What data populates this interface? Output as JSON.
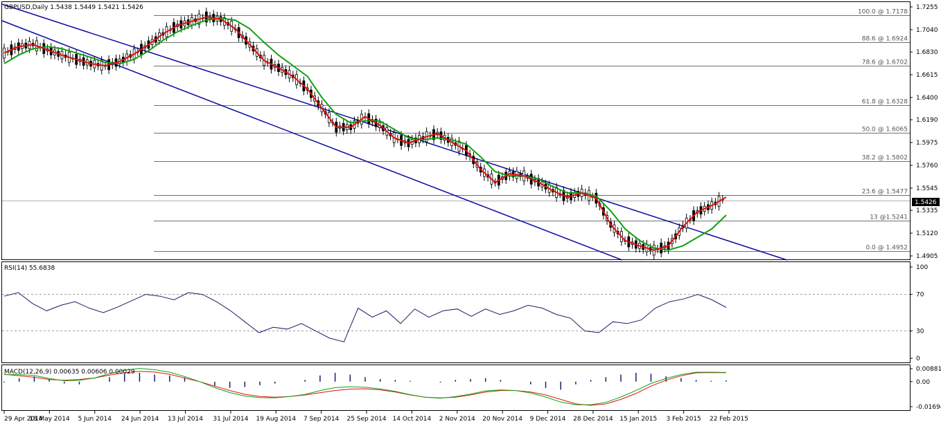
{
  "header": "GBPUSD,Daily  1.5438 1.5449 1.5421 1.5426",
  "colors": {
    "channel": "#0a0aa0",
    "ma_fast": "#e01010",
    "ma_slow": "#10a010",
    "fib": "#707070",
    "rsi": "#1a1a6e",
    "macd_hist": "#1a1a6e",
    "macd_signal": "#e01010",
    "macd_main": "#10a010"
  },
  "chart_data": [
    {
      "type": "line",
      "title": "GBPUSD,Daily",
      "ohlc_last": {
        "open": 1.5438,
        "high": 1.5449,
        "low": 1.5421,
        "close": 1.5426
      },
      "current_price_label": "1.5426",
      "ylim": [
        1.4905,
        1.7255
      ],
      "y_ticks": [
        "1.7255",
        "1.7040",
        "1.6830",
        "1.6615",
        "1.6400",
        "1.6190",
        "1.5975",
        "1.5760",
        "1.5545",
        "1.5335",
        "1.5120",
        "1.4905"
      ],
      "x_ticks": [
        "29 Apr 2014",
        "18 May 2014",
        "5 Jun 2014",
        "24 Jun 2014",
        "13 Jul 2014",
        "31 Jul 2014",
        "19 Aug 2014",
        "7 Sep 2014",
        "25 Sep 2014",
        "14 Oct 2014",
        "2 Nov 2014",
        "20 Nov 2014",
        "9 Dec 2014",
        "28 Dec 2014",
        "15 Jan 2015",
        "3 Feb 2015",
        "22 Feb 2015"
      ],
      "fib_levels": [
        {
          "label": "100.0 @ 1.7178",
          "value": 1.7178
        },
        {
          "label": "88.6 @ 1.6924",
          "value": 1.6924
        },
        {
          "label": "78.6 @ 1.6702",
          "value": 1.6702
        },
        {
          "label": "61.8 @ 1.6328",
          "value": 1.6328
        },
        {
          "label": "50.0 @ 1.6065",
          "value": 1.6065
        },
        {
          "label": "38.2 @ 1.5802",
          "value": 1.5802
        },
        {
          "label": "23.6 @ 1.5477",
          "value": 1.5477
        },
        {
          "label": "13 @1.5241",
          "value": 1.5241
        },
        {
          "label": "0.0 @ 1.4952",
          "value": 1.4952
        }
      ],
      "series": [
        {
          "values": [
            1.682,
            1.688,
            1.69,
            1.685,
            1.68,
            1.676,
            1.672,
            1.67,
            1.674,
            1.681,
            1.69,
            1.7,
            1.708,
            1.712,
            1.716,
            1.714,
            1.705,
            1.69,
            1.675,
            1.668,
            1.66,
            1.648,
            1.63,
            1.612,
            1.612,
            1.622,
            1.614,
            1.602,
            1.597,
            1.602,
            1.606,
            1.598,
            1.59,
            1.572,
            1.56,
            1.568,
            1.566,
            1.56,
            1.552,
            1.546,
            1.55,
            1.545,
            1.52,
            1.505,
            1.5,
            1.496,
            1.5,
            1.518,
            1.532,
            1.538,
            1.546
          ]
        },
        {
          "values": [
            1.672,
            1.68,
            1.686,
            1.688,
            1.686,
            1.682,
            1.678,
            1.673,
            1.672,
            1.676,
            1.684,
            1.694,
            1.702,
            1.708,
            1.713,
            1.715,
            1.713,
            1.705,
            1.692,
            1.68,
            1.67,
            1.66,
            1.64,
            1.624,
            1.616,
            1.618,
            1.618,
            1.61,
            1.602,
            1.6,
            1.602,
            1.6,
            1.596,
            1.584,
            1.57,
            1.566,
            1.566,
            1.563,
            1.556,
            1.55,
            1.55,
            1.547,
            1.533,
            1.516,
            1.505,
            1.498,
            1.496,
            1.5,
            1.508,
            1.516,
            1.529
          ]
        }
      ]
    },
    {
      "type": "line",
      "title": "RSI(14) 55.6838",
      "ylim": [
        0,
        100
      ],
      "y_ticks": [
        "100",
        "70",
        "30",
        "0"
      ],
      "levels": [
        70,
        30
      ],
      "series": [
        {
          "values": [
            68,
            72,
            60,
            52,
            58,
            62,
            55,
            50,
            56,
            63,
            70,
            68,
            64,
            72,
            70,
            62,
            52,
            40,
            28,
            34,
            32,
            38,
            30,
            22,
            18,
            55,
            45,
            52,
            38,
            54,
            45,
            52,
            54,
            46,
            54,
            48,
            52,
            58,
            55,
            48,
            44,
            30,
            28,
            40,
            38,
            42,
            55,
            62,
            65,
            70,
            64,
            55.68
          ]
        }
      ]
    },
    {
      "type": "bar",
      "title": "MACD(12,26,9) 0.00635 0.00606 0.00029",
      "ylim": [
        -0.01694,
        0.00881
      ],
      "y_ticks": [
        "0.00881",
        "0.00",
        "-0.01694"
      ],
      "series": [
        {
          "values": [
            -0.0002,
            0.0008,
            0.0012,
            0.0006,
            -0.0004,
            -0.0006,
            0.0,
            0.001,
            0.0018,
            0.002,
            0.0016,
            0.0014,
            0.001,
            0.0,
            -0.001,
            -0.0014,
            -0.0012,
            -0.0008,
            -0.0004,
            0.0,
            0.0004,
            0.0014,
            0.002,
            0.0016,
            0.001,
            0.0006,
            0.0004,
            0.0002,
            0.0,
            -0.0002,
            0.0004,
            0.0006,
            0.0008,
            0.0004,
            0.0,
            -0.0006,
            -0.0014,
            -0.0018,
            -0.0006,
            0.0004,
            0.001,
            0.0016,
            0.002,
            0.0018,
            0.0012,
            0.0008,
            0.0004,
            0.0002,
            0.0003
          ]
        },
        {
          "values": [
            0.005,
            0.004,
            0.003,
            0.0015,
            0.001,
            0.0015,
            0.0025,
            0.0045,
            0.006,
            0.007,
            0.0065,
            0.005,
            0.0025,
            0.0,
            -0.003,
            -0.006,
            -0.0085,
            -0.01,
            -0.0105,
            -0.01,
            -0.009,
            -0.0075,
            -0.006,
            -0.005,
            -0.0048,
            -0.0055,
            -0.007,
            -0.009,
            -0.0105,
            -0.011,
            -0.0105,
            -0.009,
            -0.007,
            -0.006,
            -0.006,
            -0.007,
            -0.009,
            -0.012,
            -0.015,
            -0.016,
            -0.015,
            -0.012,
            -0.008,
            -0.003,
            0.001,
            0.004,
            0.006,
            0.0062,
            0.0061
          ]
        },
        {
          "values": [
            0.0048,
            0.0048,
            0.0042,
            0.0021,
            0.0006,
            0.0009,
            0.0025,
            0.0055,
            0.0078,
            0.009,
            0.0081,
            0.0064,
            0.0035,
            0.0,
            -0.004,
            -0.0074,
            -0.0097,
            -0.0108,
            -0.0109,
            -0.01,
            -0.0086,
            -0.0061,
            -0.004,
            -0.0034,
            -0.0038,
            -0.0049,
            -0.0066,
            -0.0088,
            -0.0105,
            -0.0112,
            -0.0101,
            -0.0084,
            -0.0062,
            -0.0056,
            -0.006,
            -0.0076,
            -0.0104,
            -0.0138,
            -0.0156,
            -0.0156,
            -0.014,
            -0.0104,
            -0.006,
            -0.0012,
            0.0022,
            0.0048,
            0.0064,
            0.0064,
            0.0063
          ]
        }
      ]
    }
  ]
}
